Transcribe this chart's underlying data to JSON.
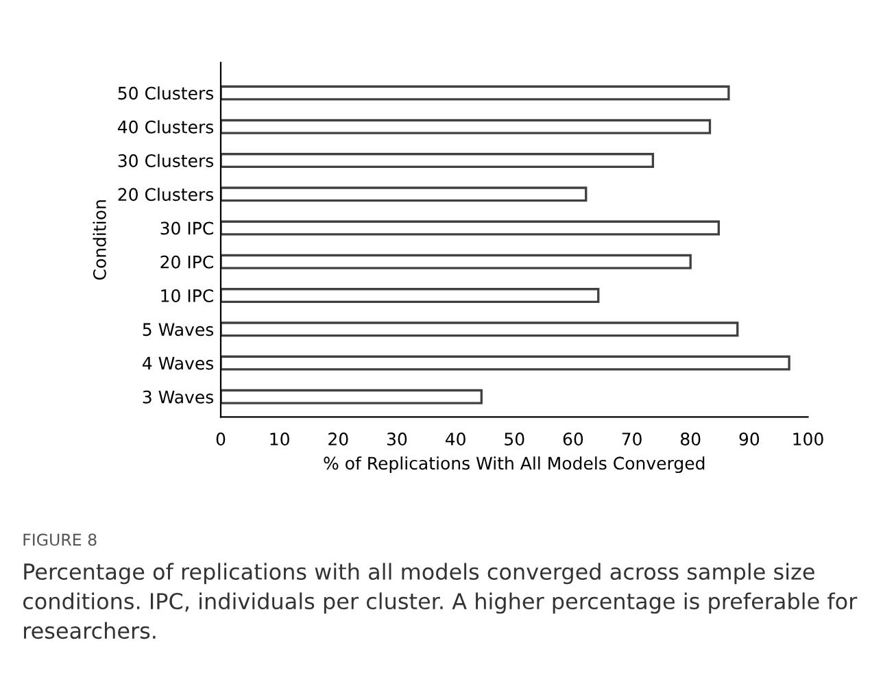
{
  "chart_data": {
    "type": "bar",
    "orientation": "horizontal",
    "ylabel": "Condition",
    "xlabel": "% of Replications With All Models Converged",
    "categories": [
      "50 Clusters",
      "40 Clusters",
      "30 Clusters",
      "20 Clusters",
      "30 IPC",
      "20 IPC",
      "10 IPC",
      "5 Waves",
      "4 Waves",
      "3 Waves"
    ],
    "values": [
      86.5,
      83.3,
      73.6,
      62.2,
      84.8,
      80.0,
      64.3,
      88.0,
      96.8,
      44.4
    ],
    "color": "#ffffff",
    "xlim": [
      0,
      100
    ],
    "xticks": [
      0,
      10,
      20,
      30,
      40,
      50,
      60,
      70,
      80,
      90,
      100
    ],
    "grid": false,
    "annotations": [
      "FIGURE 8",
      "Percentage of replications with all models converged across sample size conditions. IPC, individuals per cluster. A higher percentage is preferable for researchers."
    ]
  }
}
